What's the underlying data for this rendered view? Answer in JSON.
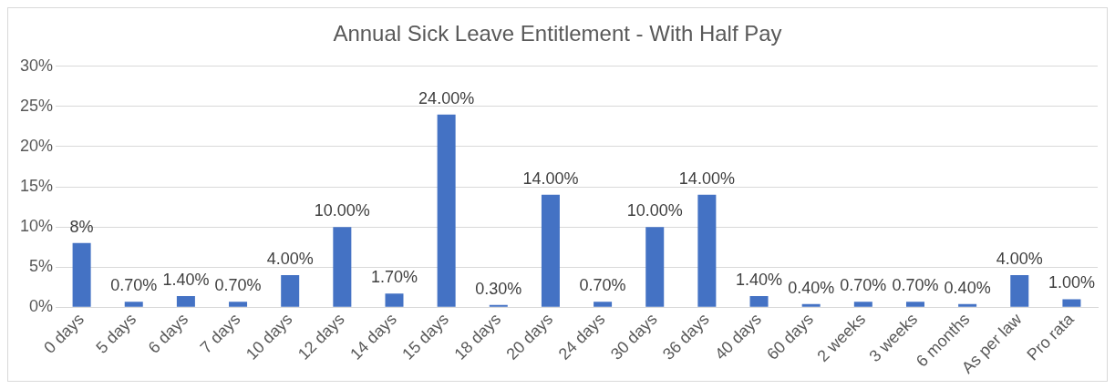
{
  "chart_data": {
    "type": "bar",
    "title": "Annual Sick Leave Entitlement - With Half Pay",
    "categories": [
      "0 days",
      "5 days",
      "6 days",
      "7 days",
      "10 days",
      "12 days",
      "14 days",
      "15 days",
      "18 days",
      "20 days",
      "24 days",
      "30 days",
      "36 days",
      "40 days",
      "60 days",
      "2 weeks",
      "3 weeks",
      "6 months",
      "As per law",
      "Pro rata"
    ],
    "values": [
      8,
      0.7,
      1.4,
      0.7,
      4,
      10,
      1.7,
      24,
      0.3,
      14,
      0.7,
      10,
      14,
      1.4,
      0.4,
      0.7,
      0.7,
      0.4,
      4,
      1
    ],
    "value_labels": [
      "8%",
      "0.70%",
      "1.40%",
      "0.70%",
      "4.00%",
      "10.00%",
      "1.70%",
      "24.00%",
      "0.30%",
      "14.00%",
      "0.70%",
      "10.00%",
      "14.00%",
      "1.40%",
      "0.40%",
      "0.70%",
      "0.70%",
      "0.40%",
      "4.00%",
      "1.00%"
    ],
    "color": "#4472c4",
    "ylim": [
      0,
      30
    ],
    "yticks": [
      {
        "value": 0,
        "label": "0%"
      },
      {
        "value": 5,
        "label": "5%"
      },
      {
        "value": 10,
        "label": "10%"
      },
      {
        "value": 15,
        "label": "15%"
      },
      {
        "value": 20,
        "label": "20%"
      },
      {
        "value": 25,
        "label": "25%"
      },
      {
        "value": 30,
        "label": "30%"
      }
    ],
    "grid": "y",
    "legend": false
  }
}
